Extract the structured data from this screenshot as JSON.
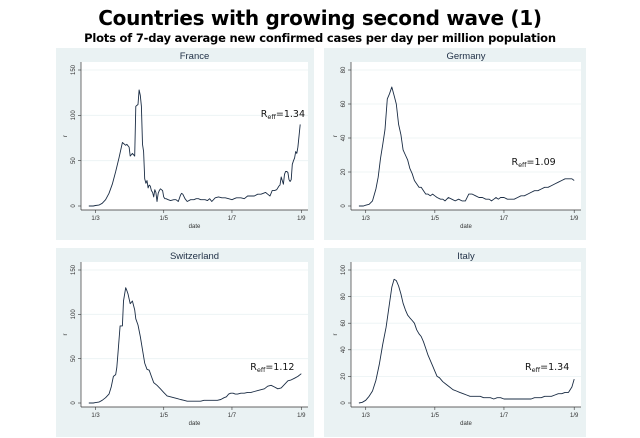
{
  "header": {
    "title": "Countries with growing second wave (1)",
    "subtitle": "Plots of 7-day average new confirmed cases per day per million population"
  },
  "colors": {
    "panel_bg": "#eaf2f3",
    "plot_bg": "#ffffff",
    "line": "#1a2c44",
    "grid": "#eaf2f3"
  },
  "chart_data": [
    {
      "type": "line",
      "title": "France",
      "xlabel": "date",
      "ylabel": "r",
      "x_unit": "days since 1 March",
      "xlim": [
        -13,
        190
      ],
      "ylim": [
        0,
        150
      ],
      "yticks": [
        0,
        50,
        100,
        150
      ],
      "xticks": [
        {
          "value": 0,
          "label": "1/3"
        },
        {
          "value": 61,
          "label": "1/5"
        },
        {
          "value": 122,
          "label": "1/7"
        },
        {
          "value": 184,
          "label": "1/9"
        }
      ],
      "grid": true,
      "annotation": {
        "base": "R",
        "sub": "eff",
        "text": "=1.34",
        "x": 180,
        "y": 98
      },
      "x": [
        -6,
        -2,
        0,
        3,
        6,
        9,
        12,
        15,
        18,
        21,
        24,
        27,
        28,
        30,
        31,
        33,
        35,
        36,
        37,
        38,
        39,
        40,
        41,
        42,
        43,
        44,
        45,
        46,
        47,
        48,
        49,
        50,
        51,
        52,
        53,
        54,
        55,
        56,
        57,
        58,
        59,
        60,
        61,
        62,
        63,
        65,
        67,
        70,
        72,
        74,
        76,
        77,
        78,
        80,
        82,
        85,
        88,
        90,
        92,
        94,
        96,
        98,
        100,
        102,
        104,
        107,
        110,
        113,
        116,
        119,
        122,
        124,
        126,
        128,
        130,
        133,
        136,
        139,
        142,
        145,
        148,
        150,
        152,
        154,
        156,
        158,
        160,
        162,
        164,
        165,
        166,
        167,
        168,
        169,
        170,
        171,
        172,
        173,
        174,
        175,
        176,
        177,
        178,
        179,
        180,
        181,
        182,
        183
      ],
      "y": [
        0,
        0,
        0.5,
        1,
        3,
        7,
        14,
        24,
        38,
        53,
        70,
        67,
        68,
        65,
        55,
        58,
        55,
        110,
        111,
        112,
        128,
        122,
        110,
        68,
        60,
        30,
        25,
        28,
        20,
        23,
        22,
        17,
        15,
        10,
        18,
        15,
        5,
        14,
        17,
        19,
        18,
        17,
        10,
        8,
        8,
        7,
        6,
        7,
        7,
        5,
        12,
        14,
        13,
        8,
        5,
        7,
        7,
        8,
        8,
        7,
        7,
        7,
        6,
        8,
        5,
        9,
        10,
        9,
        9,
        8,
        7,
        8,
        9,
        9,
        9,
        8,
        11,
        11,
        11,
        13,
        13,
        14,
        15,
        13,
        11,
        17,
        17,
        18,
        22,
        23,
        32,
        28,
        24,
        35,
        38,
        38,
        37,
        29,
        27,
        29,
        46,
        50,
        53,
        60,
        58,
        65,
        78,
        90
      ]
    },
    {
      "type": "line",
      "title": "Germany",
      "xlabel": "date",
      "ylabel": "r",
      "x_unit": "days since 1 March",
      "xlim": [
        -13,
        190
      ],
      "ylim": [
        0,
        80
      ],
      "yticks": [
        0,
        20,
        40,
        60,
        80
      ],
      "xticks": [
        {
          "value": 0,
          "label": "1/3"
        },
        {
          "value": 61,
          "label": "1/5"
        },
        {
          "value": 122,
          "label": "1/7"
        },
        {
          "value": 184,
          "label": "1/9"
        }
      ],
      "grid": true,
      "annotation": {
        "base": "R",
        "sub": "eff",
        "text": "=1.09",
        "x": 150,
        "y": 24
      },
      "x": [
        -6,
        -2,
        0,
        3,
        6,
        9,
        11,
        13,
        15,
        17,
        19,
        21,
        23,
        25,
        27,
        29,
        31,
        33,
        35,
        37,
        39,
        41,
        43,
        45,
        47,
        49,
        51,
        53,
        55,
        57,
        59,
        61,
        63,
        66,
        68,
        70,
        73,
        76,
        79,
        82,
        85,
        88,
        91,
        94,
        97,
        100,
        103,
        106,
        109,
        111,
        113,
        115,
        117,
        119,
        122,
        125,
        128,
        131,
        134,
        137,
        140,
        143,
        146,
        149,
        152,
        155,
        158,
        161,
        164,
        167,
        170,
        173,
        176,
        179,
        182,
        184
      ],
      "y": [
        0,
        0,
        0.5,
        1,
        3,
        10,
        17,
        28,
        36,
        45,
        63,
        66,
        70,
        65,
        60,
        48,
        42,
        33,
        30,
        27,
        22,
        19,
        15,
        13,
        11,
        11,
        9,
        7,
        7,
        6,
        7,
        6,
        5,
        4,
        4,
        3,
        5,
        4,
        3,
        4,
        3,
        3,
        7,
        7,
        6,
        5,
        5,
        4,
        4,
        3,
        4,
        5,
        4,
        5,
        5,
        4,
        4,
        4,
        5,
        6,
        6,
        7,
        8,
        9,
        9,
        10,
        11,
        11,
        12,
        13,
        14,
        15,
        16,
        16,
        16,
        15
      ]
    },
    {
      "type": "line",
      "title": "Switzerland",
      "xlabel": "date",
      "ylabel": "r",
      "x_unit": "days since 1 March",
      "xlim": [
        -13,
        190
      ],
      "ylim": [
        0,
        150
      ],
      "yticks": [
        0,
        50,
        100,
        150
      ],
      "xticks": [
        {
          "value": 0,
          "label": "1/3"
        },
        {
          "value": 61,
          "label": "1/5"
        },
        {
          "value": 122,
          "label": "1/7"
        },
        {
          "value": 184,
          "label": "1/9"
        }
      ],
      "grid": true,
      "annotation": {
        "base": "R",
        "sub": "eff",
        "text": "=1.12",
        "x": 160,
        "y": 37
      },
      "x": [
        -6,
        -2,
        0,
        3,
        6,
        9,
        12,
        14,
        16,
        18,
        19,
        20,
        22,
        24,
        25,
        27,
        28,
        29,
        31,
        33,
        35,
        36,
        38,
        40,
        42,
        44,
        46,
        48,
        50,
        52,
        55,
        58,
        61,
        64,
        67,
        70,
        73,
        76,
        79,
        82,
        85,
        88,
        91,
        94,
        97,
        100,
        103,
        106,
        109,
        112,
        115,
        117,
        119,
        121,
        123,
        125,
        127,
        130,
        133,
        136,
        139,
        142,
        145,
        148,
        151,
        154,
        157,
        160,
        163,
        166,
        169,
        172,
        175,
        178,
        181,
        184
      ],
      "y": [
        0,
        0,
        0.5,
        1,
        3,
        6,
        10,
        18,
        30,
        32,
        40,
        55,
        87,
        87,
        115,
        130,
        127,
        123,
        112,
        115,
        105,
        95,
        88,
        75,
        60,
        45,
        38,
        37,
        30,
        23,
        20,
        16,
        12,
        8,
        7,
        6,
        5,
        4,
        3,
        2,
        2,
        2,
        2,
        2,
        3,
        3,
        3,
        3,
        3,
        4,
        6,
        7,
        10,
        11,
        11,
        10,
        10,
        11,
        11,
        12,
        12,
        13,
        14,
        15,
        16,
        19,
        20,
        18,
        16,
        17,
        21,
        25,
        26,
        28,
        30,
        33
      ]
    },
    {
      "type": "line",
      "title": "Italy",
      "xlabel": "date",
      "ylabel": "r",
      "x_unit": "days since 1 March",
      "xlim": [
        -13,
        190
      ],
      "ylim": [
        0,
        100
      ],
      "yticks": [
        0,
        20,
        40,
        60,
        80,
        100
      ],
      "xticks": [
        {
          "value": 0,
          "label": "1/3"
        },
        {
          "value": 61,
          "label": "1/5"
        },
        {
          "value": 122,
          "label": "1/7"
        },
        {
          "value": 184,
          "label": "1/9"
        }
      ],
      "grid": true,
      "annotation": {
        "base": "R",
        "sub": "eff",
        "text": "=1.34",
        "x": 162,
        "y": 25
      },
      "x": [
        -6,
        -3,
        0,
        3,
        6,
        9,
        12,
        15,
        18,
        21,
        23,
        25,
        27,
        29,
        31,
        33,
        35,
        37,
        39,
        41,
        43,
        45,
        47,
        49,
        51,
        53,
        55,
        57,
        59,
        61,
        63,
        65,
        68,
        71,
        74,
        77,
        80,
        83,
        86,
        89,
        92,
        95,
        98,
        101,
        104,
        107,
        110,
        113,
        116,
        119,
        122,
        125,
        128,
        131,
        134,
        137,
        140,
        143,
        146,
        149,
        152,
        155,
        158,
        161,
        164,
        167,
        170,
        173,
        176,
        179,
        182,
        184
      ],
      "y": [
        0,
        0.5,
        2,
        5,
        9,
        17,
        29,
        44,
        57,
        75,
        87,
        93,
        92,
        88,
        82,
        75,
        70,
        66,
        64,
        62,
        60,
        55,
        52,
        50,
        46,
        41,
        36,
        32,
        28,
        24,
        20,
        19,
        16,
        14,
        12,
        10,
        9,
        8,
        7,
        6,
        5,
        5,
        5,
        5,
        4,
        4,
        4,
        3,
        4,
        4,
        3,
        3,
        3,
        3,
        3,
        3,
        3,
        3,
        3,
        4,
        4,
        4,
        5,
        5,
        5,
        6,
        7,
        7,
        8,
        8,
        12,
        18
      ]
    }
  ]
}
